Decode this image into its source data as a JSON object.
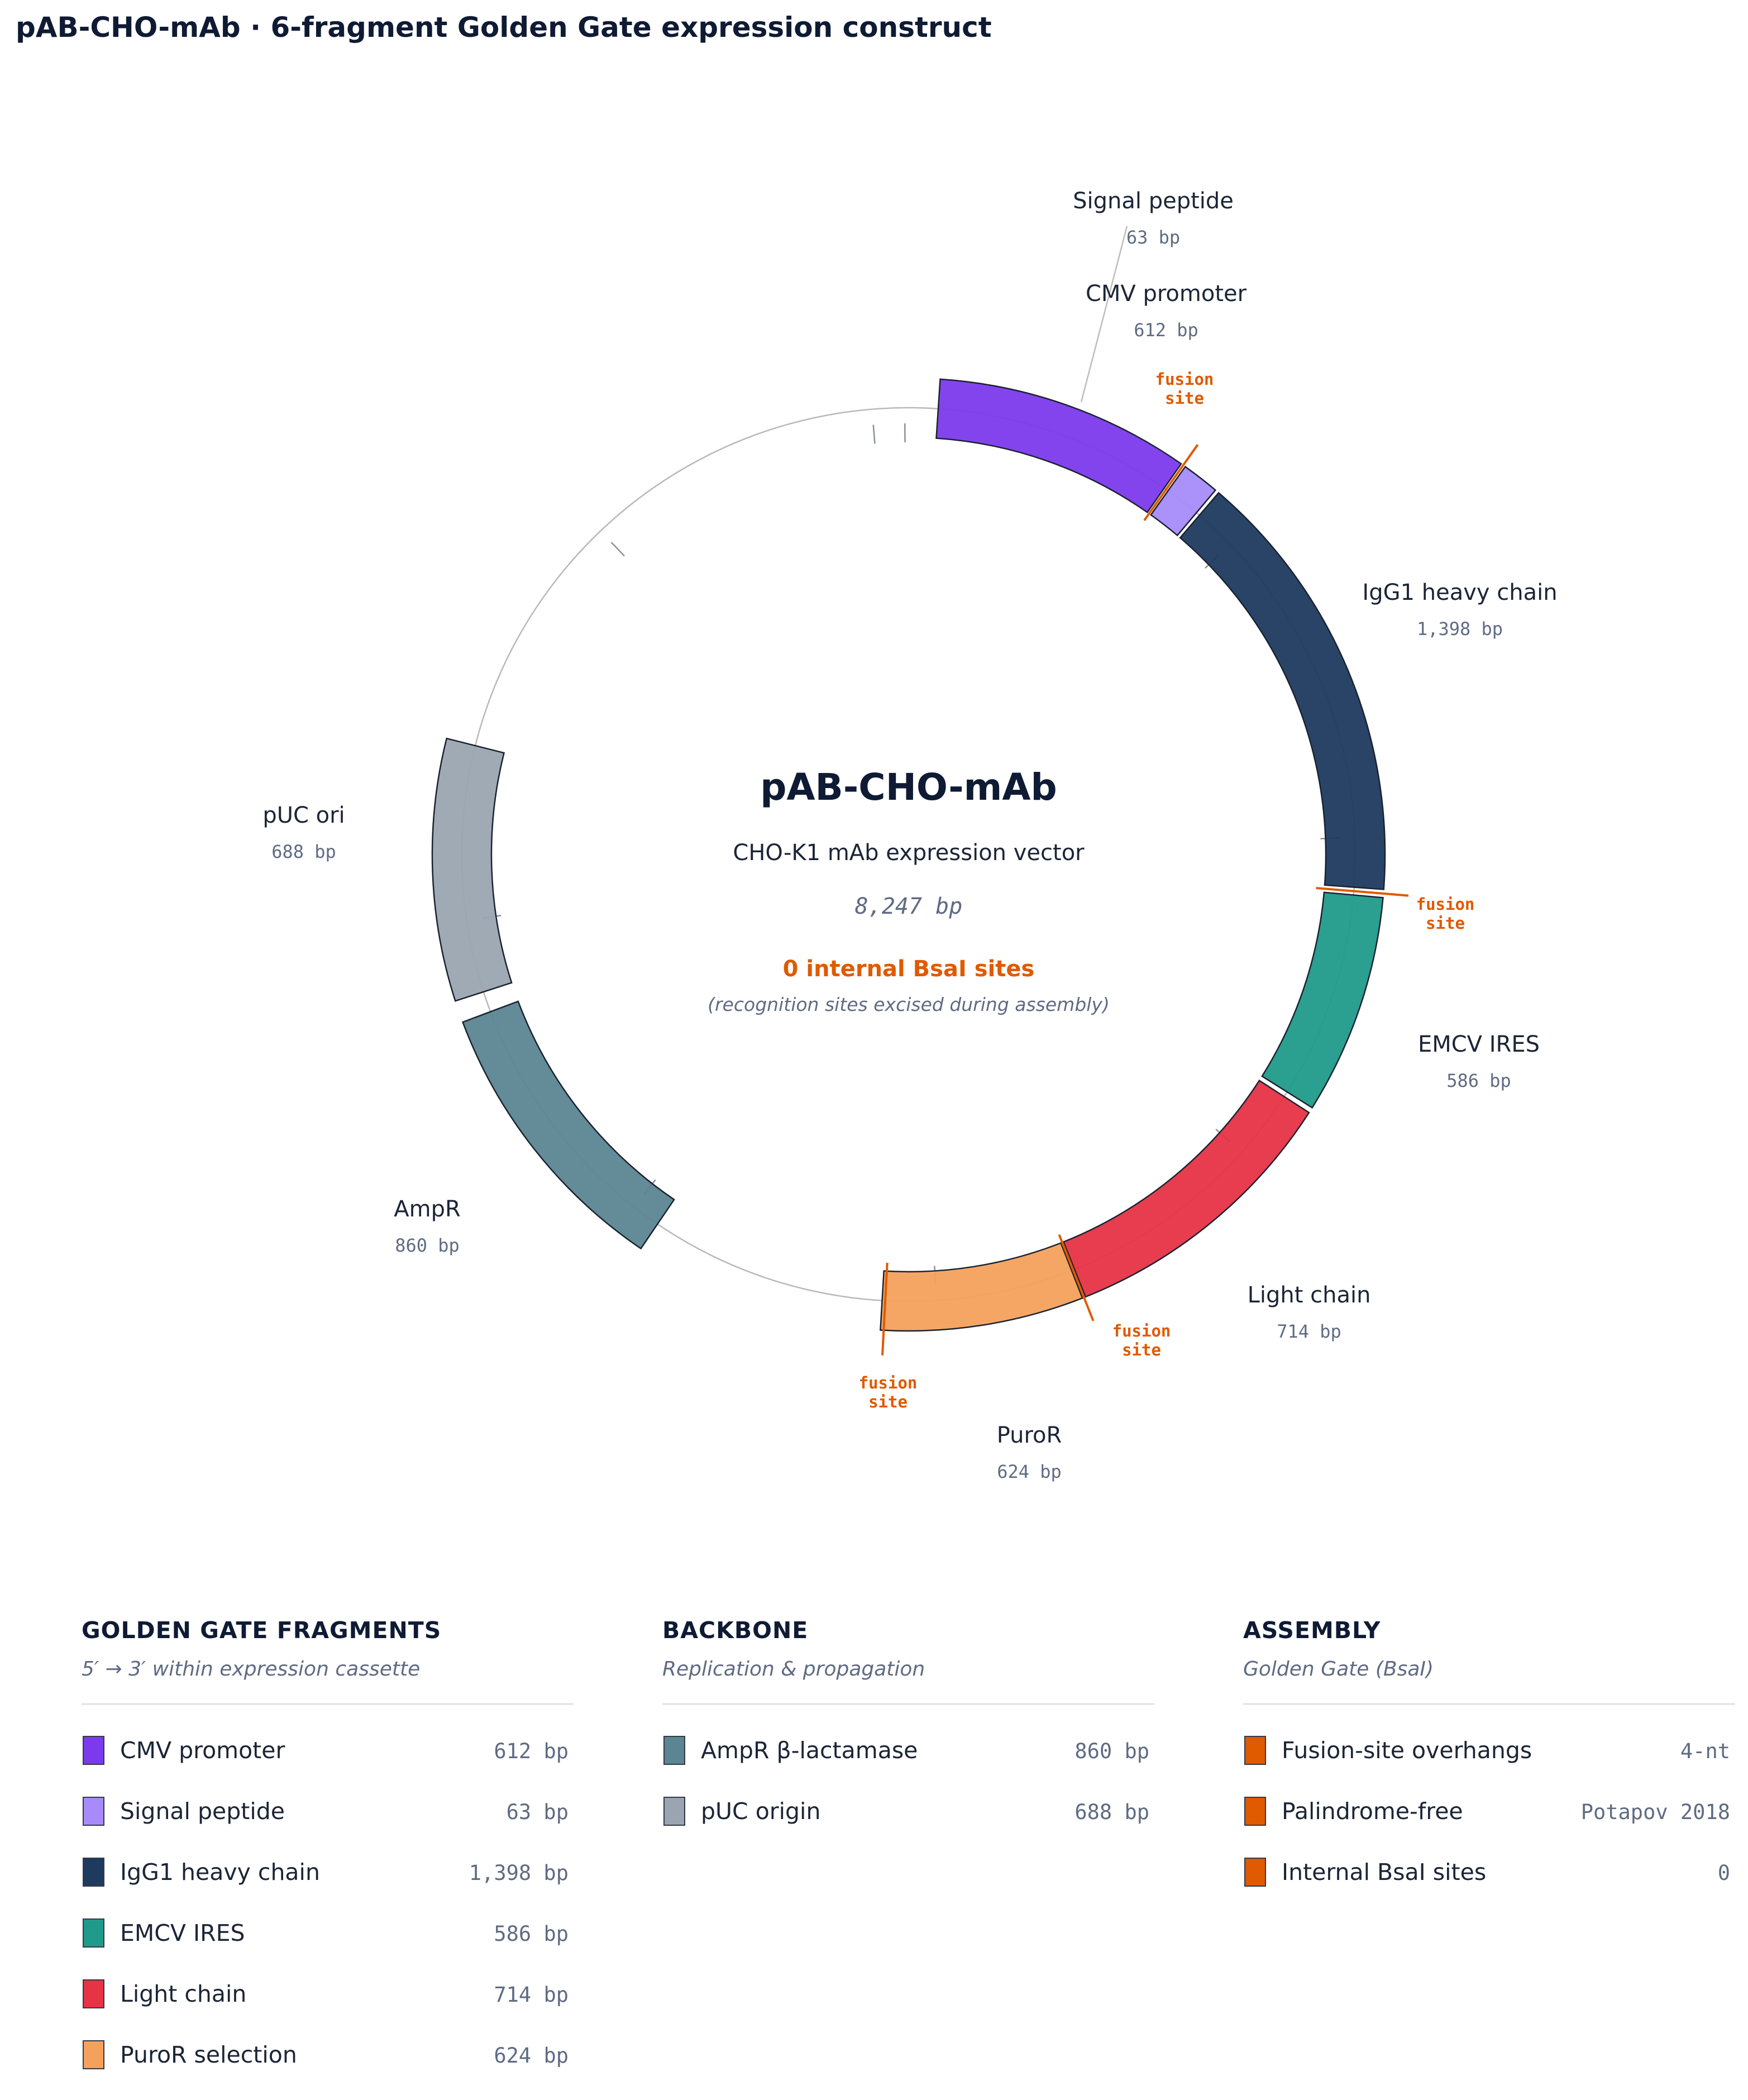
{
  "title": "pAB-CHO-mAb · 6-fragment Golden Gate expression construct",
  "center": {
    "name": "pAB-CHO-mAb",
    "subtitle": "CHO-K1 mAb expression vector",
    "size": "8,247 bp",
    "internal_sites": "0 internal BsaI sites",
    "note": "(recognition sites excised during assembly)"
  },
  "fusion_label": [
    "fusion",
    "site"
  ],
  "map_features": [
    {
      "name": "CMV promoter",
      "bp": "612 bp",
      "color": "#7c3aed",
      "role": "fragment"
    },
    {
      "name": "Signal peptide",
      "bp": "63 bp",
      "color": "#a78bfa",
      "role": "fragment"
    },
    {
      "name": "IgG1 heavy chain",
      "bp": "1,398 bp",
      "color": "#1e3a5f",
      "role": "fragment"
    },
    {
      "name": "EMCV IRES",
      "bp": "586 bp",
      "color": "#209a8a",
      "role": "fragment"
    },
    {
      "name": "Light chain",
      "bp": "714 bp",
      "color": "#e63346",
      "role": "fragment"
    },
    {
      "name": "PuroR",
      "bp": "624 bp",
      "color": "#f4a15d",
      "role": "fragment"
    },
    {
      "name": "AmpR",
      "bp": "860 bp",
      "color": "#5b8592",
      "role": "backbone"
    },
    {
      "name": "pUC ori",
      "bp": "688 bp",
      "color": "#9aa5b1",
      "role": "backbone"
    }
  ],
  "fusion_color": "#e05a00",
  "legend": {
    "fragments": {
      "title": "GOLDEN GATE FRAGMENTS",
      "subtitle": "5′ → 3′ within expression cassette",
      "items": [
        {
          "label": "CMV promoter",
          "value": "612 bp",
          "color": "#7c3aed"
        },
        {
          "label": "Signal peptide",
          "value": "63 bp",
          "color": "#a78bfa"
        },
        {
          "label": "IgG1 heavy chain",
          "value": "1,398 bp",
          "color": "#1e3a5f"
        },
        {
          "label": "EMCV IRES",
          "value": "586 bp",
          "color": "#209a8a"
        },
        {
          "label": "Light chain",
          "value": "714 bp",
          "color": "#e63346"
        },
        {
          "label": "PuroR selection",
          "value": "624 bp",
          "color": "#f4a15d"
        }
      ]
    },
    "backbone": {
      "title": "BACKBONE",
      "subtitle": "Replication & propagation",
      "items": [
        {
          "label": "AmpR β-lactamase",
          "value": "860 bp",
          "color": "#5b8592"
        },
        {
          "label": "pUC origin",
          "value": "688 bp",
          "color": "#9aa5b1"
        }
      ]
    },
    "assembly": {
      "title": "ASSEMBLY",
      "subtitle": "Golden Gate (BsaI)",
      "items": [
        {
          "label": "Fusion-site overhangs",
          "value": "4-nt",
          "color": "#e05a00"
        },
        {
          "label": "Palindrome-free",
          "value": "Potapov 2018",
          "color": "#e05a00"
        },
        {
          "label": "Internal BsaI sites",
          "value": "0",
          "color": "#e05a00"
        }
      ]
    }
  }
}
